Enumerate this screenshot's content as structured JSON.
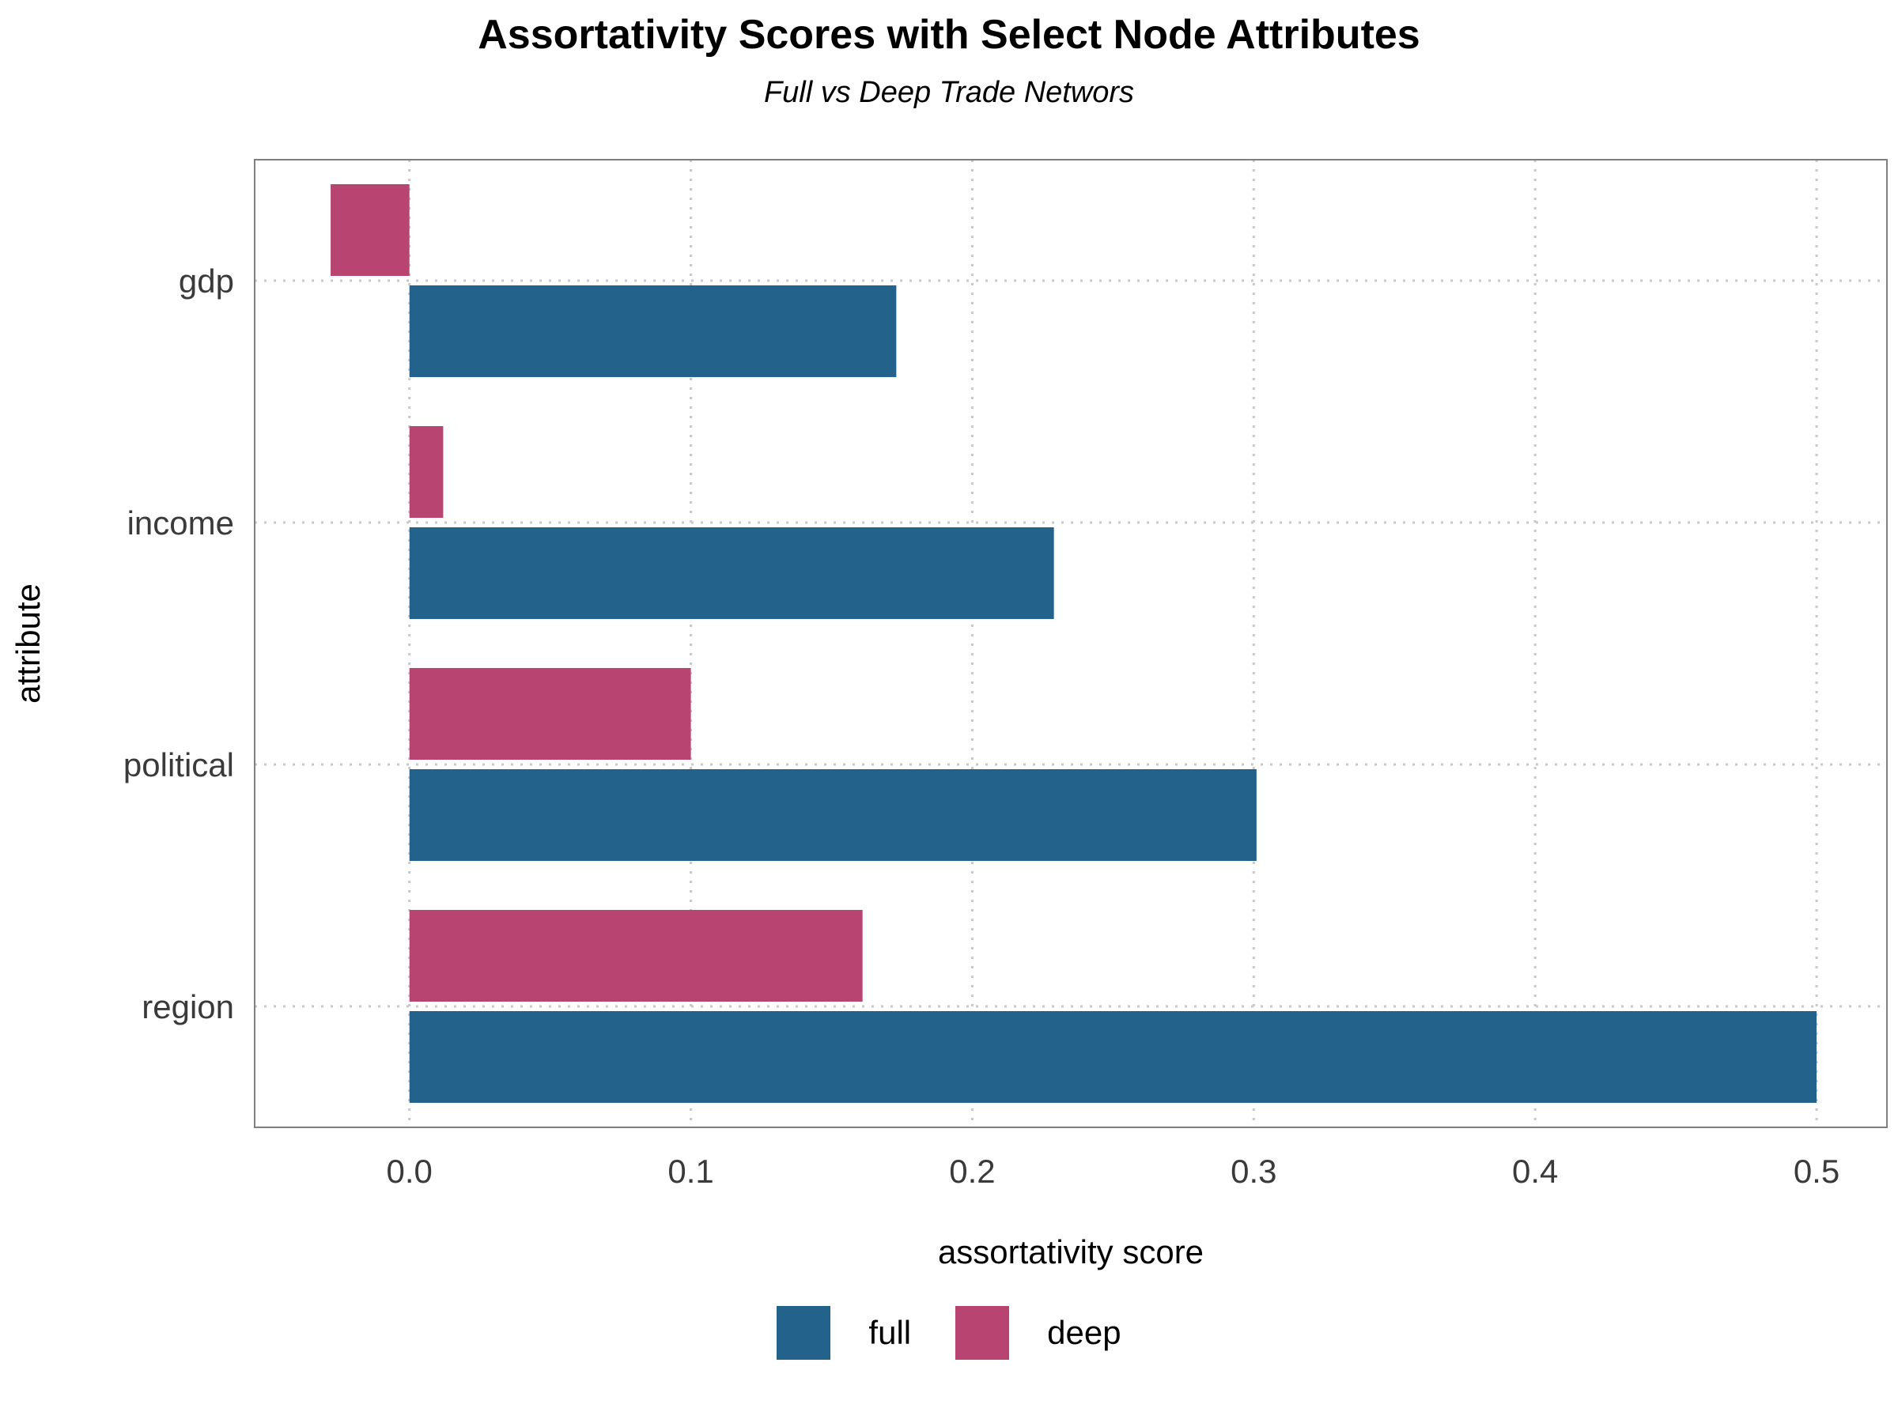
{
  "chart_data": {
    "type": "bar",
    "orientation": "horizontal",
    "title": "Assortativity Scores with Select Node Attributes",
    "subtitle": "Full vs Deep Trade Networs",
    "xlabel": "assortativity score",
    "ylabel": "attribute",
    "categories": [
      "gdp",
      "income",
      "political",
      "region"
    ],
    "series": [
      {
        "name": "full",
        "color": "#23628B",
        "values": [
          0.173,
          0.229,
          0.301,
          0.5
        ]
      },
      {
        "name": "deep",
        "color": "#B84472",
        "values": [
          -0.028,
          0.012,
          0.1,
          0.161
        ]
      }
    ],
    "xlim": [
      -0.055,
      0.525
    ],
    "xticks": [
      0.0,
      0.1,
      0.2,
      0.3,
      0.4,
      0.5
    ],
    "xtick_labels": [
      "0.0",
      "0.1",
      "0.2",
      "0.3",
      "0.4",
      "0.5"
    ],
    "grid": "dotted",
    "legend_position": "bottom"
  }
}
